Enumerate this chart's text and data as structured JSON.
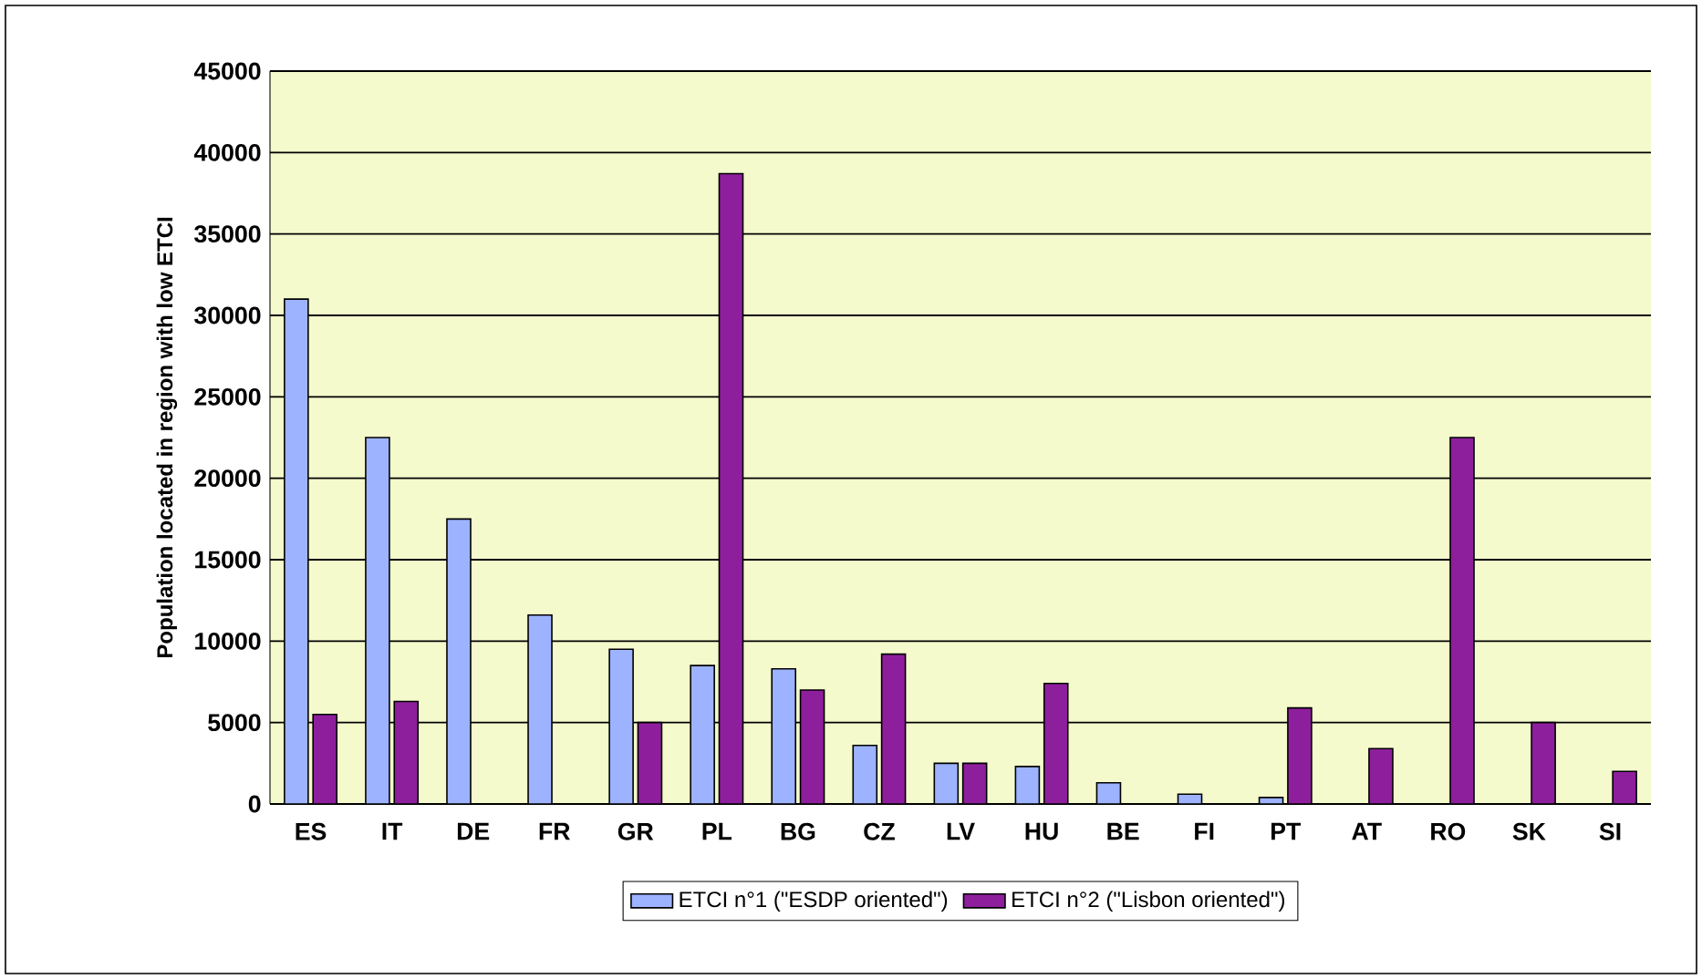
{
  "chart_data": {
    "type": "bar",
    "ylabel": "Population located in region with low ETCI",
    "categories": [
      "ES",
      "IT",
      "DE",
      "FR",
      "GR",
      "PL",
      "BG",
      "CZ",
      "LV",
      "HU",
      "BE",
      "FI",
      "PT",
      "AT",
      "RO",
      "SK",
      "SI"
    ],
    "series": [
      {
        "name": "ETCI n°1  (\"ESDP oriented\")",
        "color": "#9db3ff",
        "values": [
          31000,
          22500,
          17500,
          11600,
          9500,
          8500,
          8300,
          3600,
          2500,
          2300,
          1300,
          600,
          400,
          null,
          null,
          null,
          null
        ]
      },
      {
        "name": "ETCI n°2 (\"Lisbon oriented\")",
        "color": "#8e1f9c",
        "values": [
          5500,
          6300,
          null,
          null,
          5000,
          38700,
          7000,
          9200,
          2500,
          7400,
          null,
          null,
          5900,
          3400,
          22500,
          5000,
          2000
        ]
      }
    ],
    "ylim": [
      0,
      45000
    ],
    "yticks": [
      0,
      5000,
      10000,
      15000,
      20000,
      25000,
      30000,
      35000,
      40000,
      45000
    ],
    "grid": "y",
    "legend": "bottom"
  }
}
